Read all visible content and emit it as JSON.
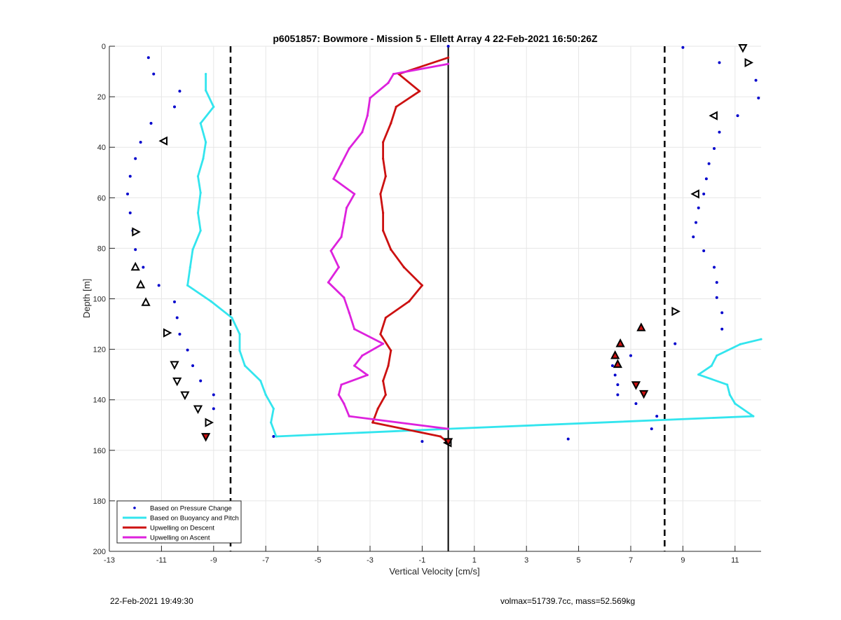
{
  "chart_data": {
    "type": "line",
    "title": "p6051857: Bowmore - Mission 5 - Ellett Array 4 22-Feb-2021 16:50:26Z",
    "xlabel": "Vertical Velocity [cm/s]",
    "ylabel": "Depth [m]",
    "xlim": [
      -13,
      12
    ],
    "ylim": [
      0,
      200
    ],
    "y_reversed": true,
    "xticks": [
      -13,
      -11,
      -9,
      -7,
      -5,
      -3,
      -1,
      1,
      3,
      5,
      7,
      9,
      11
    ],
    "yticks": [
      0,
      20,
      40,
      60,
      80,
      100,
      120,
      140,
      160,
      180,
      200
    ],
    "grid": true,
    "legend_position": "bottom-left",
    "reference_lines": {
      "solid_x": 0,
      "dashed_x": [
        -8.35,
        8.3
      ]
    },
    "series": [
      {
        "name": "Based on Pressure Change",
        "style": "points",
        "color": "#0000cc",
        "points": [
          [
            -11.5,
            4.5
          ],
          [
            -11.3,
            11
          ],
          [
            -10.3,
            17.8
          ],
          [
            -10.5,
            24
          ],
          [
            -11.4,
            30.5
          ],
          [
            -11.8,
            38
          ],
          [
            -12.0,
            44.5
          ],
          [
            -12.2,
            51.5
          ],
          [
            -12.3,
            58.5
          ],
          [
            -12.2,
            66
          ],
          [
            -12.1,
            73
          ],
          [
            -12.0,
            80.5
          ],
          [
            -11.7,
            87.5
          ],
          [
            -11.1,
            94.7
          ],
          [
            -10.5,
            101.2
          ],
          [
            -10.4,
            107.5
          ],
          [
            -10.3,
            114
          ],
          [
            -10.0,
            120.3
          ],
          [
            -9.8,
            126.5
          ],
          [
            -9.5,
            132.5
          ],
          [
            -9.0,
            138
          ],
          [
            -9.0,
            143.5
          ],
          [
            -9.2,
            149
          ],
          [
            -9.3,
            155
          ],
          [
            -6.7,
            154.5
          ],
          [
            -1.0,
            156.5
          ],
          [
            0,
            0
          ],
          [
            0,
            157
          ],
          [
            9.0,
            0.5
          ],
          [
            10.4,
            6.5
          ],
          [
            11.8,
            13.5
          ],
          [
            11.9,
            20.5
          ],
          [
            11.1,
            27.5
          ],
          [
            10.4,
            34
          ],
          [
            10.2,
            40.5
          ],
          [
            10.0,
            46.5
          ],
          [
            9.9,
            52.5
          ],
          [
            9.8,
            58.5
          ],
          [
            9.6,
            64
          ],
          [
            9.5,
            69.8
          ],
          [
            9.4,
            75.5
          ],
          [
            9.8,
            81
          ],
          [
            10.2,
            87.5
          ],
          [
            10.3,
            93.5
          ],
          [
            10.3,
            99.5
          ],
          [
            10.5,
            105.5
          ],
          [
            10.5,
            112
          ],
          [
            8.7,
            117.8
          ],
          [
            7.0,
            122.5
          ],
          [
            6.3,
            126.5
          ],
          [
            6.4,
            130.2
          ],
          [
            6.5,
            134
          ],
          [
            6.5,
            138
          ],
          [
            7.2,
            141.5
          ],
          [
            8.0,
            146.5
          ],
          [
            7.8,
            151.5
          ],
          [
            4.6,
            155.5
          ]
        ]
      },
      {
        "name": "Based on Buoyancy and Pitch",
        "style": "line",
        "color": "#33e5ee",
        "points": [
          [
            -9.3,
            11
          ],
          [
            -9.3,
            17.5
          ],
          [
            -9.0,
            24
          ],
          [
            -9.5,
            30.5
          ],
          [
            -9.3,
            38
          ],
          [
            -9.4,
            44.5
          ],
          [
            -9.6,
            51.5
          ],
          [
            -9.5,
            58
          ],
          [
            -9.6,
            66
          ],
          [
            -9.5,
            73
          ],
          [
            -9.8,
            80.5
          ],
          [
            -9.9,
            87.5
          ],
          [
            -10.0,
            94.7
          ],
          [
            -9.1,
            101
          ],
          [
            -8.3,
            107.5
          ],
          [
            -8.0,
            114
          ],
          [
            -8.0,
            120.5
          ],
          [
            -7.8,
            126.5
          ],
          [
            -7.2,
            132.5
          ],
          [
            -7.0,
            138
          ],
          [
            -6.7,
            143.5
          ],
          [
            -6.8,
            149
          ],
          [
            -6.6,
            154.5
          ],
          [
            0,
            151.5
          ],
          [
            11.7,
            146.5
          ],
          [
            11.0,
            141.5
          ],
          [
            10.8,
            138
          ],
          [
            10.7,
            134
          ],
          [
            9.6,
            130
          ],
          [
            10.1,
            126.5
          ],
          [
            10.3,
            122.5
          ],
          [
            11.2,
            118
          ],
          [
            12.0,
            116
          ]
        ]
      },
      {
        "name": "Upwelling on Descent",
        "style": "line",
        "color": "#cc1111",
        "points": [
          [
            0,
            4.5
          ],
          [
            -1.9,
            11
          ],
          [
            -1.1,
            17.8
          ],
          [
            -2.0,
            24
          ],
          [
            -2.2,
            30.5
          ],
          [
            -2.5,
            38
          ],
          [
            -2.5,
            44.5
          ],
          [
            -2.4,
            51.5
          ],
          [
            -2.6,
            58.5
          ],
          [
            -2.5,
            66
          ],
          [
            -2.5,
            73
          ],
          [
            -2.2,
            80.5
          ],
          [
            -1.7,
            87.5
          ],
          [
            -1.0,
            94.7
          ],
          [
            -1.5,
            101
          ],
          [
            -2.4,
            107.5
          ],
          [
            -2.6,
            114
          ],
          [
            -2.2,
            120.5
          ],
          [
            -2.3,
            126.5
          ],
          [
            -2.5,
            132.5
          ],
          [
            -2.4,
            138
          ],
          [
            -2.7,
            143.5
          ],
          [
            -2.9,
            149
          ],
          [
            -0.3,
            154.5
          ],
          [
            0,
            157
          ]
        ]
      },
      {
        "name": "Upwelling on Ascent",
        "style": "line",
        "color": "#dd22dd",
        "points": [
          [
            0,
            7
          ],
          [
            -2.1,
            11
          ],
          [
            -2.3,
            14.5
          ],
          [
            -3.0,
            20.5
          ],
          [
            -3.1,
            27.5
          ],
          [
            -3.3,
            34
          ],
          [
            -3.8,
            40.5
          ],
          [
            -4.1,
            46.5
          ],
          [
            -4.4,
            52.5
          ],
          [
            -3.6,
            58.5
          ],
          [
            -3.9,
            64
          ],
          [
            -4.0,
            69.8
          ],
          [
            -4.1,
            75.5
          ],
          [
            -4.5,
            81
          ],
          [
            -4.2,
            87.5
          ],
          [
            -4.6,
            93.5
          ],
          [
            -4.0,
            99.5
          ],
          [
            -3.8,
            105.5
          ],
          [
            -3.6,
            112
          ],
          [
            -2.5,
            117.8
          ],
          [
            -3.3,
            122.5
          ],
          [
            -3.6,
            126.5
          ],
          [
            -3.1,
            130.2
          ],
          [
            -4.1,
            134
          ],
          [
            -4.2,
            138
          ],
          [
            -4.0,
            141.5
          ],
          [
            -3.8,
            146.5
          ],
          [
            0,
            151.5
          ]
        ]
      }
    ],
    "markers": [
      {
        "shape": "triangle-left",
        "color": "#000000",
        "fill": "#ffffff",
        "points": [
          [
            -10.9,
            37.5
          ],
          [
            0,
            157
          ],
          [
            10.2,
            27.5
          ],
          [
            9.5,
            58.5
          ]
        ]
      },
      {
        "shape": "triangle-right",
        "color": "#000000",
        "fill": "#ffffff",
        "points": [
          [
            -12.0,
            73.5
          ],
          [
            -10.8,
            113.5
          ],
          [
            -9.2,
            149
          ],
          [
            11.5,
            6.5
          ],
          [
            8.7,
            105
          ]
        ]
      },
      {
        "shape": "triangle-down",
        "color": "#000000",
        "fill": "#ffffff",
        "points": [
          [
            11.3,
            0.5
          ],
          [
            -10.5,
            126
          ],
          [
            -10.4,
            132.5
          ],
          [
            -10.1,
            138
          ],
          [
            -9.6,
            143.5
          ]
        ]
      },
      {
        "shape": "triangle-up",
        "color": "#000000",
        "fill": "#ffffff",
        "points": [
          [
            -12.0,
            87.5
          ],
          [
            -11.8,
            94.5
          ],
          [
            -11.6,
            101.5
          ]
        ]
      },
      {
        "shape": "triangle-up",
        "color": "#000000",
        "fill": "#cc1111",
        "points": [
          [
            7.4,
            111.5
          ],
          [
            6.6,
            117.8
          ],
          [
            6.4,
            122.5
          ],
          [
            6.5,
            126
          ]
        ]
      },
      {
        "shape": "triangle-down",
        "color": "#000000",
        "fill": "#cc1111",
        "points": [
          [
            7.2,
            134
          ],
          [
            7.5,
            137.5
          ],
          [
            -9.3,
            154.5
          ],
          [
            0,
            156.5
          ]
        ]
      }
    ]
  },
  "footer": {
    "left": "22-Feb-2021 19:49:30",
    "right": "volmax=51739.7cc, mass=52.569kg"
  }
}
